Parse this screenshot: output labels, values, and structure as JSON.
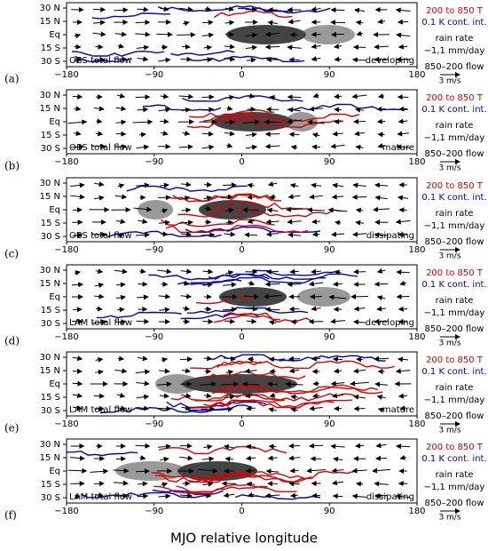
{
  "x_axis_title": "MJO relative longitude",
  "x_tick_labels": [
    "−180",
    "−90",
    "0",
    "90",
    "180"
  ],
  "y_tick_labels": [
    "30 N",
    "15 N",
    "Eq",
    "15 S",
    "30 S"
  ],
  "legend": {
    "temperature": "200 to 850 T",
    "contour_interval": "0.1 K cont. int.",
    "rain_title": "rain rate",
    "rain_range": "−1,1 mm/day",
    "flow": "850–200 flow",
    "scale": "3 m/s"
  },
  "panels": [
    {
      "label": "(a)",
      "dataset": "OBS total flow",
      "phase": "developing"
    },
    {
      "label": "(b)",
      "dataset": "OBS total flow",
      "phase": "mature"
    },
    {
      "label": "(c)",
      "dataset": "OBS total flow",
      "phase": "dissipating"
    },
    {
      "label": "(d)",
      "dataset": "LAM total flow",
      "phase": "developing"
    },
    {
      "label": "(e)",
      "dataset": "LAM total flow",
      "phase": "mature"
    },
    {
      "label": "(f)",
      "dataset": "LAM total flow",
      "phase": "dissipating"
    }
  ]
}
